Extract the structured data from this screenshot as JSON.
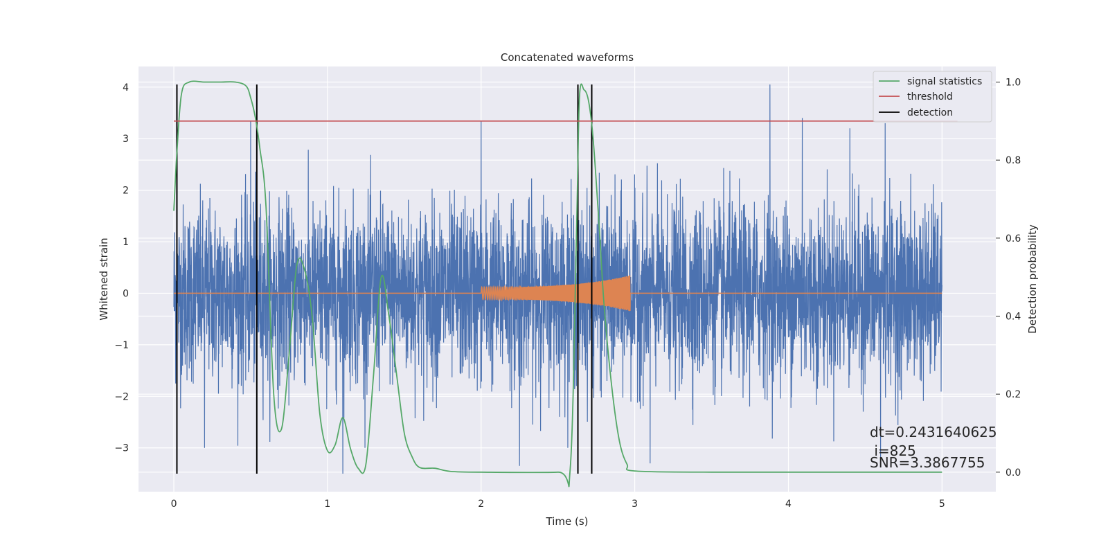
{
  "chart_data": {
    "type": "line",
    "title": "Concatenated waveforms",
    "xlabel": "Time (s)",
    "ylabel_left": "Whitened strain",
    "ylabel_right": "Detection probability",
    "xlim": [
      -0.23,
      5.35
    ],
    "ylim_left": [
      -3.85,
      4.4
    ],
    "ylim_right": [
      -0.05,
      1.04
    ],
    "xticks": [
      0,
      1,
      2,
      3,
      4,
      5
    ],
    "xtick_labels": [
      "0",
      "1",
      "2",
      "3",
      "4",
      "5"
    ],
    "yticks_left": [
      -3,
      -2,
      -1,
      0,
      1,
      2,
      3,
      4
    ],
    "ytick_labels_left": [
      "−3",
      "−2",
      "−1",
      "0",
      "1",
      "2",
      "3",
      "4"
    ],
    "yticks_right": [
      0.0,
      0.2,
      0.4,
      0.6,
      0.8,
      1.0
    ],
    "ytick_labels_right": [
      "0.0",
      "0.2",
      "0.4",
      "0.6",
      "0.8",
      "1.0"
    ],
    "grid": true,
    "legend_position": "top-right",
    "series": [
      {
        "name": "",
        "axis": "left",
        "kind": "noise",
        "color": "#4c72b0",
        "x_range": [
          0,
          5
        ],
        "amplitude_std": 0.85,
        "notable_peaks": [
          [
            0.5,
            3.35
          ],
          [
            2.0,
            3.35
          ],
          [
            3.88,
            4.05
          ],
          [
            4.09,
            3.4
          ],
          [
            4.4,
            3.2
          ],
          [
            4.63,
            3.3
          ]
        ],
        "notable_troughs": [
          [
            0.2,
            -3.0
          ],
          [
            1.1,
            -3.5
          ],
          [
            2.25,
            -3.35
          ],
          [
            3.1,
            -3.3
          ],
          [
            4.6,
            -3.2
          ]
        ]
      },
      {
        "name": "",
        "axis": "left",
        "kind": "chirp",
        "color": "#dd8452",
        "x_range": [
          0,
          5
        ],
        "chirp_start": 2.0,
        "chirp_end": 2.97,
        "chirp_amplitude_start": 0.12,
        "chirp_amplitude_end": 0.35
      },
      {
        "name": "signal statistics",
        "axis": "right",
        "color": "#55a868",
        "x": [
          0.0,
          0.02,
          0.05,
          0.1,
          0.2,
          0.3,
          0.4,
          0.47,
          0.5,
          0.53,
          0.56,
          0.6,
          0.65,
          0.7,
          0.75,
          0.8,
          0.85,
          0.9,
          0.95,
          1.0,
          1.05,
          1.1,
          1.15,
          1.2,
          1.25,
          1.3,
          1.35,
          1.4,
          1.45,
          1.5,
          1.55,
          1.6,
          1.7,
          1.8,
          2.0,
          2.5,
          2.58,
          2.62,
          2.64,
          2.67,
          2.7,
          2.73,
          2.77,
          2.8,
          2.85,
          2.9,
          2.95,
          3.0,
          3.5,
          4.0,
          4.5,
          5.0
        ],
        "y": [
          0.67,
          0.82,
          0.97,
          1.0,
          1.0,
          1.0,
          1.0,
          0.99,
          0.96,
          0.91,
          0.83,
          0.68,
          0.2,
          0.11,
          0.3,
          0.53,
          0.52,
          0.4,
          0.15,
          0.055,
          0.07,
          0.14,
          0.06,
          0.01,
          0.02,
          0.25,
          0.5,
          0.4,
          0.25,
          0.1,
          0.04,
          0.012,
          0.01,
          0.002,
          0.0,
          0.0,
          0.01,
          0.6,
          0.96,
          0.98,
          0.95,
          0.85,
          0.62,
          0.43,
          0.22,
          0.08,
          0.02,
          0.003,
          0.0,
          0.0,
          0.0,
          0.0
        ]
      },
      {
        "name": "threshold",
        "axis": "right",
        "color": "#c44e52",
        "x": [
          0.0,
          5.1
        ],
        "y": [
          0.9,
          0.9
        ]
      },
      {
        "name": "detection",
        "axis": "left",
        "color": "#000000",
        "vlines": [
          0.02,
          0.54,
          2.63,
          2.72
        ],
        "ymin": -3.5,
        "ymax": 4.05
      }
    ],
    "annotations": [
      "dt=0.2431640625",
      " i=825",
      "SNR=3.3867755"
    ]
  }
}
